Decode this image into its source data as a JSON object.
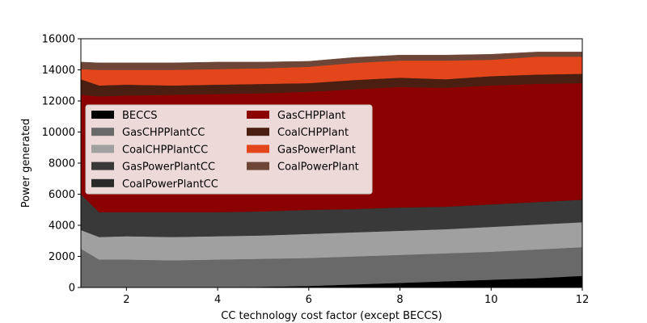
{
  "chart_data": {
    "type": "area",
    "stacked": true,
    "title": "",
    "xlabel": "CC technology cost factor (except BECCS)",
    "ylabel": "Power generated",
    "xlim": [
      1,
      12
    ],
    "ylim": [
      0,
      16000
    ],
    "xticks": [
      2,
      4,
      6,
      8,
      10,
      12
    ],
    "yticks": [
      0,
      2000,
      4000,
      6000,
      8000,
      10000,
      12000,
      14000,
      16000
    ],
    "x": [
      1,
      1.4,
      2,
      3,
      4,
      5,
      6,
      7,
      8,
      9,
      10,
      11,
      12
    ],
    "legend_columns": 2,
    "legend_location": "center-left",
    "series": [
      {
        "name": "BECCS",
        "color": "#000000",
        "values": [
          0,
          0,
          0,
          0,
          0,
          50,
          100,
          200,
          300,
          400,
          500,
          600,
          750
        ]
      },
      {
        "name": "GasCHPPlantCC",
        "color": "#696969",
        "values": [
          2500,
          1800,
          1800,
          1750,
          1800,
          1800,
          1800,
          1800,
          1800,
          1800,
          1800,
          1850,
          1850
        ]
      },
      {
        "name": "CoalCHPPlantCC",
        "color": "#a0a0a0",
        "values": [
          1200,
          1450,
          1500,
          1500,
          1500,
          1500,
          1550,
          1550,
          1550,
          1550,
          1600,
          1600,
          1600
        ]
      },
      {
        "name": "GasPowerPlantCC",
        "color": "#393939",
        "values": [
          2300,
          1600,
          1550,
          1600,
          1550,
          1550,
          1550,
          1500,
          1500,
          1450,
          1450,
          1450,
          1450
        ]
      },
      {
        "name": "CoalPowerPlantCC",
        "color": "#2a2a2a",
        "values": [
          0,
          0,
          0,
          0,
          0,
          0,
          0,
          0,
          0,
          0,
          0,
          0,
          0
        ]
      },
      {
        "name": "GasCHPPlant",
        "color": "#8b0000",
        "values": [
          6400,
          7450,
          7500,
          7550,
          7600,
          7600,
          7600,
          7700,
          7750,
          7650,
          7650,
          7600,
          7500
        ]
      },
      {
        "name": "CoalCHPPlant",
        "color": "#4a1f12",
        "values": [
          1000,
          700,
          700,
          600,
          600,
          600,
          550,
          600,
          600,
          550,
          600,
          600,
          600
        ]
      },
      {
        "name": "GasPowerPlant",
        "color": "#e2461a",
        "values": [
          650,
          1000,
          950,
          1000,
          1000,
          1000,
          1050,
          1100,
          1100,
          1200,
          1050,
          1150,
          1100
        ]
      },
      {
        "name": "CoalPowerPlant",
        "color": "#6e4637",
        "values": [
          450,
          450,
          450,
          450,
          450,
          400,
          350,
          350,
          350,
          350,
          350,
          300,
          300
        ]
      }
    ]
  }
}
